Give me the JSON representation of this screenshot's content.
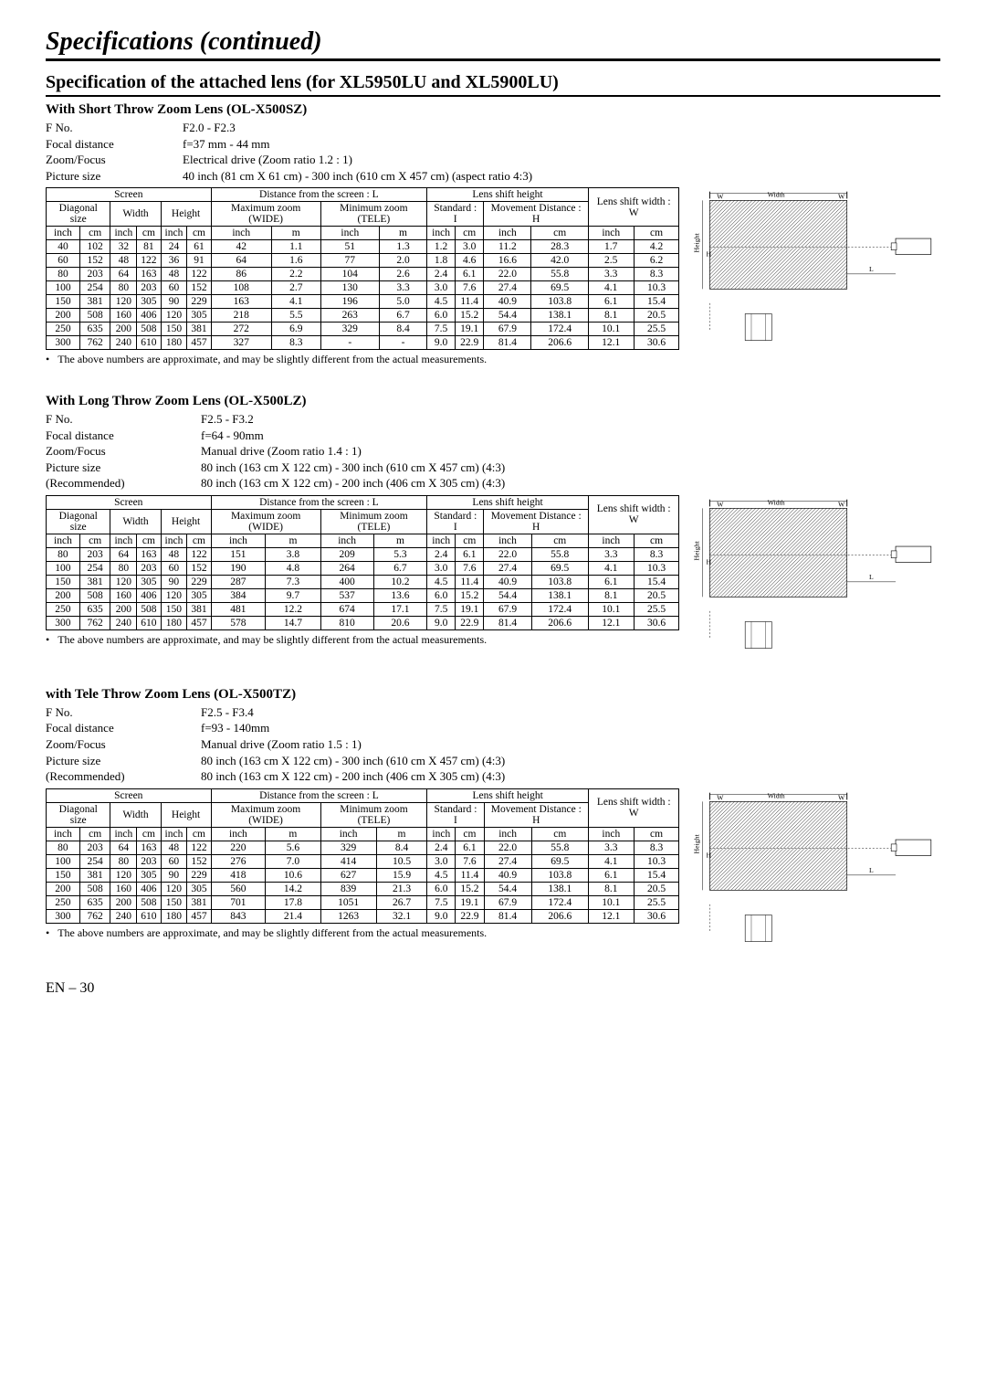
{
  "pageTitle": "Specifications (continued)",
  "sectionTitle": "Specification of the attached lens (for XL5950LU and XL5900LU)",
  "footer": "EN – 30",
  "tableHeaders": {
    "screen": "Screen",
    "distance": "Distance from the screen : L",
    "lensShiftHeight": "Lens shift height",
    "lensShiftWidth": "Lens shift width : W",
    "diagonal": "Diagonal size",
    "width": "Width",
    "height": "Height",
    "maxZoom": "Maximum zoom (WIDE)",
    "minZoom": "Minimum zoom (TELE)",
    "standard": "Standard : I",
    "movement": "Movement Distance : H",
    "inch": "inch",
    "cm": "cm",
    "m": "m"
  },
  "note": "The above numbers are approximate, and may be slightly different from the actual measurements.",
  "diagram": {
    "width": "Width",
    "height": "Height",
    "W": "W",
    "H": "H",
    "L": "L"
  },
  "lenses": [
    {
      "title": "With Short Throw Zoom Lens (OL-X500SZ)",
      "labelWidth": "short",
      "specs": [
        {
          "label": "F No.",
          "value": "F2.0 - F2.3"
        },
        {
          "label": "Focal distance",
          "value": "f=37 mm - 44 mm"
        },
        {
          "label": "Zoom/Focus",
          "value": "Electrical drive (Zoom ratio 1.2 : 1)"
        },
        {
          "label": "Picture size",
          "value": "40 inch (81 cm X 61 cm) - 300 inch (610 cm X 457 cm) (aspect ratio 4:3)"
        }
      ],
      "rows": [
        [
          "40",
          "102",
          "32",
          "81",
          "24",
          "61",
          "42",
          "1.1",
          "51",
          "1.3",
          "1.2",
          "3.0",
          "11.2",
          "28.3",
          "1.7",
          "4.2"
        ],
        [
          "60",
          "152",
          "48",
          "122",
          "36",
          "91",
          "64",
          "1.6",
          "77",
          "2.0",
          "1.8",
          "4.6",
          "16.6",
          "42.0",
          "2.5",
          "6.2"
        ],
        [
          "80",
          "203",
          "64",
          "163",
          "48",
          "122",
          "86",
          "2.2",
          "104",
          "2.6",
          "2.4",
          "6.1",
          "22.0",
          "55.8",
          "3.3",
          "8.3"
        ],
        [
          "100",
          "254",
          "80",
          "203",
          "60",
          "152",
          "108",
          "2.7",
          "130",
          "3.3",
          "3.0",
          "7.6",
          "27.4",
          "69.5",
          "4.1",
          "10.3"
        ],
        [
          "150",
          "381",
          "120",
          "305",
          "90",
          "229",
          "163",
          "4.1",
          "196",
          "5.0",
          "4.5",
          "11.4",
          "40.9",
          "103.8",
          "6.1",
          "15.4"
        ],
        [
          "200",
          "508",
          "160",
          "406",
          "120",
          "305",
          "218",
          "5.5",
          "263",
          "6.7",
          "6.0",
          "15.2",
          "54.4",
          "138.1",
          "8.1",
          "20.5"
        ],
        [
          "250",
          "635",
          "200",
          "508",
          "150",
          "381",
          "272",
          "6.9",
          "329",
          "8.4",
          "7.5",
          "19.1",
          "67.9",
          "172.4",
          "10.1",
          "25.5"
        ],
        [
          "300",
          "762",
          "240",
          "610",
          "180",
          "457",
          "327",
          "8.3",
          "-",
          "-",
          "9.0",
          "22.9",
          "81.4",
          "206.6",
          "12.1",
          "30.6"
        ]
      ]
    },
    {
      "title": "With Long Throw Zoom Lens (OL-X500LZ)",
      "labelWidth": "long",
      "specs": [
        {
          "label": "F No.",
          "value": "F2.5 - F3.2"
        },
        {
          "label": "Focal distance",
          "value": "f=64 - 90mm"
        },
        {
          "label": "Zoom/Focus",
          "value": "Manual drive (Zoom ratio 1.4 : 1)"
        },
        {
          "label": "Picture size",
          "value": "80 inch (163 cm X 122 cm) - 300 inch (610 cm X 457 cm) (4:3)"
        },
        {
          "label": "(Recommended)",
          "value": "80 inch (163 cm X 122 cm) - 200 inch (406 cm X 305 cm) (4:3)"
        }
      ],
      "rows": [
        [
          "80",
          "203",
          "64",
          "163",
          "48",
          "122",
          "151",
          "3.8",
          "209",
          "5.3",
          "2.4",
          "6.1",
          "22.0",
          "55.8",
          "3.3",
          "8.3"
        ],
        [
          "100",
          "254",
          "80",
          "203",
          "60",
          "152",
          "190",
          "4.8",
          "264",
          "6.7",
          "3.0",
          "7.6",
          "27.4",
          "69.5",
          "4.1",
          "10.3"
        ],
        [
          "150",
          "381",
          "120",
          "305",
          "90",
          "229",
          "287",
          "7.3",
          "400",
          "10.2",
          "4.5",
          "11.4",
          "40.9",
          "103.8",
          "6.1",
          "15.4"
        ],
        [
          "200",
          "508",
          "160",
          "406",
          "120",
          "305",
          "384",
          "9.7",
          "537",
          "13.6",
          "6.0",
          "15.2",
          "54.4",
          "138.1",
          "8.1",
          "20.5"
        ],
        [
          "250",
          "635",
          "200",
          "508",
          "150",
          "381",
          "481",
          "12.2",
          "674",
          "17.1",
          "7.5",
          "19.1",
          "67.9",
          "172.4",
          "10.1",
          "25.5"
        ],
        [
          "300",
          "762",
          "240",
          "610",
          "180",
          "457",
          "578",
          "14.7",
          "810",
          "20.6",
          "9.0",
          "22.9",
          "81.4",
          "206.6",
          "12.1",
          "30.6"
        ]
      ]
    },
    {
      "title": "with Tele Throw Zoom Lens (OL-X500TZ)",
      "labelWidth": "long",
      "specs": [
        {
          "label": "F No.",
          "value": "F2.5 - F3.4"
        },
        {
          "label": "Focal distance",
          "value": "f=93 - 140mm"
        },
        {
          "label": "Zoom/Focus",
          "value": "Manual drive (Zoom ratio 1.5 : 1)"
        },
        {
          "label": "Picture size",
          "value": "80 inch (163 cm X 122 cm) - 300 inch (610 cm X 457 cm) (4:3)"
        },
        {
          "label": "(Recommended)",
          "value": "80 inch (163 cm X 122 cm) - 200 inch (406 cm X 305 cm) (4:3)"
        }
      ],
      "rows": [
        [
          "80",
          "203",
          "64",
          "163",
          "48",
          "122",
          "220",
          "5.6",
          "329",
          "8.4",
          "2.4",
          "6.1",
          "22.0",
          "55.8",
          "3.3",
          "8.3"
        ],
        [
          "100",
          "254",
          "80",
          "203",
          "60",
          "152",
          "276",
          "7.0",
          "414",
          "10.5",
          "3.0",
          "7.6",
          "27.4",
          "69.5",
          "4.1",
          "10.3"
        ],
        [
          "150",
          "381",
          "120",
          "305",
          "90",
          "229",
          "418",
          "10.6",
          "627",
          "15.9",
          "4.5",
          "11.4",
          "40.9",
          "103.8",
          "6.1",
          "15.4"
        ],
        [
          "200",
          "508",
          "160",
          "406",
          "120",
          "305",
          "560",
          "14.2",
          "839",
          "21.3",
          "6.0",
          "15.2",
          "54.4",
          "138.1",
          "8.1",
          "20.5"
        ],
        [
          "250",
          "635",
          "200",
          "508",
          "150",
          "381",
          "701",
          "17.8",
          "1051",
          "26.7",
          "7.5",
          "19.1",
          "67.9",
          "172.4",
          "10.1",
          "25.5"
        ],
        [
          "300",
          "762",
          "240",
          "610",
          "180",
          "457",
          "843",
          "21.4",
          "1263",
          "32.1",
          "9.0",
          "22.9",
          "81.4",
          "206.6",
          "12.1",
          "30.6"
        ]
      ]
    }
  ]
}
